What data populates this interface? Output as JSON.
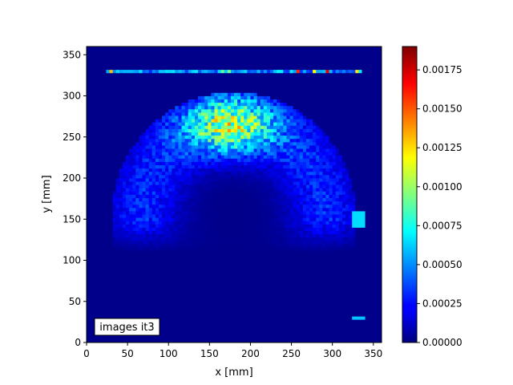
{
  "chart_data": {
    "type": "heatmap",
    "title": "",
    "xlabel": "x [mm]",
    "ylabel": "y [mm]",
    "xlim": [
      0,
      360
    ],
    "ylim": [
      0,
      360
    ],
    "x_ticks": [
      "0",
      "50",
      "100",
      "150",
      "200",
      "250",
      "300",
      "350"
    ],
    "y_ticks": [
      "0",
      "50",
      "100",
      "150",
      "200",
      "250",
      "300",
      "350"
    ],
    "x_tick_values": [
      0,
      50,
      100,
      150,
      200,
      250,
      300,
      350
    ],
    "y_tick_values": [
      0,
      50,
      100,
      150,
      200,
      250,
      300,
      350
    ],
    "colormap": "jet",
    "colorbar": {
      "range": [
        0,
        0.0019
      ],
      "ticks": [
        "0.00000",
        "0.00025",
        "0.00050",
        "0.00075",
        "0.00100",
        "0.00125",
        "0.00150",
        "0.00175"
      ],
      "tick_values": [
        0,
        0.00025,
        0.0005,
        0.00075,
        0.001,
        0.00125,
        0.0015,
        0.00175
      ]
    },
    "annotation": "images it3",
    "grid": false,
    "features": {
      "dome_center": [
        180,
        150
      ],
      "dome_radius_x": 150,
      "dome_radius_y": 155,
      "inner_low_region_center": [
        180,
        175
      ],
      "peak_region_center": [
        175,
        265
      ],
      "peak_value": 0.0011,
      "top_line_y": 330,
      "top_line_x_range": [
        25,
        335
      ],
      "top_line_peak_value": 0.0016,
      "background_value": 2e-05
    }
  }
}
